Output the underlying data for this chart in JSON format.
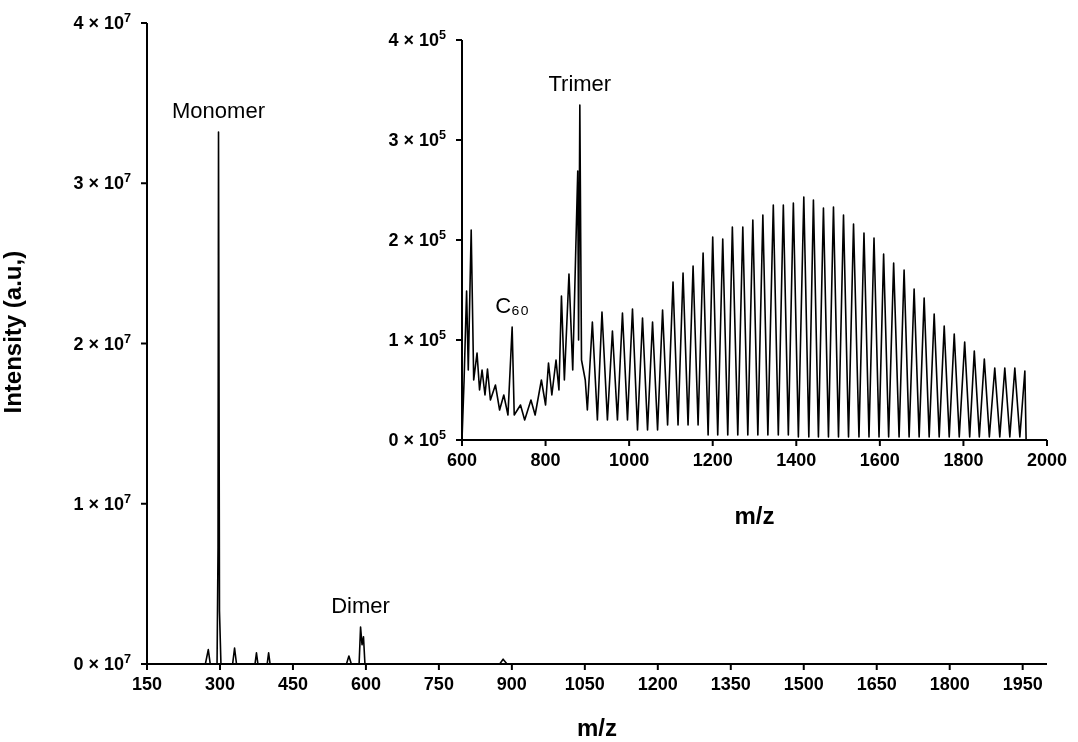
{
  "chart_data": [
    {
      "type": "line",
      "color": "#000000",
      "xlabel": "m/z",
      "ylabel": "Intensity (a.u,)",
      "x": [
        150,
        270,
        276,
        280,
        294,
        296,
        297,
        299,
        302,
        326,
        330,
        334,
        372,
        375,
        378,
        397,
        400,
        403,
        560,
        565,
        570,
        586,
        589,
        592,
        595,
        598,
        875,
        882,
        890,
        1950
      ],
      "values": [
        0,
        0,
        900000,
        0,
        0,
        7250000,
        33200000,
        3300000,
        0,
        0,
        1000000,
        0,
        0,
        700000,
        0,
        0,
        700000,
        0,
        0,
        500000,
        0,
        0,
        2300000,
        1200000,
        1700000,
        0,
        0,
        300000,
        0,
        0
      ],
      "xlim": [
        150,
        2000
      ],
      "xticks": [
        150,
        300,
        450,
        600,
        750,
        900,
        1050,
        1200,
        1350,
        1500,
        1650,
        1800,
        1950
      ],
      "ylim": [
        0,
        40000000
      ],
      "yticks": [
        {
          "value": 0,
          "label": "0 × 10$^{7}$"
        },
        {
          "value": 10000000,
          "label": "1 × 10$^{7}$"
        },
        {
          "value": 20000000,
          "label": "2 × 10$^{7}$"
        },
        {
          "value": 30000000,
          "label": "3 × 10$^{7}$"
        },
        {
          "value": 40000000,
          "label": "4 × 10$^{7}$"
        }
      ],
      "annotations": [
        {
          "text": "Monomer",
          "x": 297,
          "y": 33200000
        },
        {
          "text": "Dimer",
          "x": 589,
          "y": 2300000
        }
      ]
    },
    {
      "type": "line",
      "color": "#000000",
      "xlabel": "m/z",
      "x": [
        600,
        605,
        611,
        615,
        622,
        628,
        636,
        642,
        648,
        655,
        661,
        668,
        680,
        690,
        700,
        710,
        720,
        725,
        740,
        750,
        765,
        775,
        790,
        800,
        807,
        815,
        825,
        832,
        838,
        845,
        856,
        865,
        877,
        879,
        882,
        886,
        895,
        900,
        912,
        924,
        935,
        948,
        960,
        972,
        984,
        996,
        1008,
        1020,
        1032,
        1044,
        1056,
        1068,
        1080,
        1092,
        1105,
        1117,
        1129,
        1141,
        1153,
        1165,
        1177,
        1189,
        1200,
        1212,
        1224,
        1236,
        1247,
        1260,
        1272,
        1284,
        1296,
        1308,
        1320,
        1332,
        1345,
        1357,
        1369,
        1381,
        1393,
        1405,
        1418,
        1430,
        1441,
        1453,
        1465,
        1477,
        1489,
        1501,
        1513,
        1525,
        1537,
        1550,
        1562,
        1574,
        1586,
        1598,
        1609,
        1621,
        1633,
        1646,
        1658,
        1670,
        1682,
        1694,
        1706,
        1718,
        1730,
        1742,
        1754,
        1766,
        1778,
        1790,
        1803,
        1815,
        1826,
        1838,
        1850,
        1862,
        1875,
        1887,
        1899,
        1911,
        1923,
        1935,
        1947,
        1950
      ],
      "values": [
        0,
        60000,
        149000,
        70000,
        210000,
        60000,
        87000,
        50000,
        70000,
        45000,
        71000,
        40000,
        55000,
        30000,
        45000,
        25000,
        113000,
        25000,
        35000,
        20000,
        40000,
        25000,
        60000,
        35000,
        77000,
        45000,
        80000,
        50000,
        144000,
        60000,
        166000,
        70000,
        269000,
        100000,
        335000,
        80000,
        60000,
        30000,
        118000,
        20000,
        128000,
        20000,
        109000,
        20000,
        127000,
        20000,
        131000,
        10000,
        122000,
        10000,
        118000,
        10000,
        130000,
        15000,
        158000,
        15000,
        167000,
        15000,
        174000,
        15000,
        187000,
        5000,
        203000,
        5000,
        201000,
        5000,
        213000,
        5000,
        213000,
        5000,
        220000,
        5000,
        225000,
        5000,
        235000,
        5000,
        235000,
        5000,
        237000,
        3000,
        243000,
        3000,
        240000,
        3000,
        232000,
        3000,
        233000,
        3000,
        225000,
        3000,
        216000,
        3000,
        207000,
        3000,
        202000,
        3000,
        186000,
        3000,
        177000,
        3000,
        170000,
        3000,
        151000,
        3000,
        142000,
        3000,
        126000,
        3000,
        114000,
        3000,
        106000,
        3000,
        98000,
        3000,
        89000,
        3000,
        81000,
        3000,
        72000,
        3000,
        72000,
        3000,
        72000,
        3000,
        69000,
        0
      ],
      "xlim": [
        600,
        2000
      ],
      "xticks": [
        600,
        800,
        1000,
        1200,
        1400,
        1600,
        1800,
        2000
      ],
      "ylim": [
        0,
        400000
      ],
      "yticks": [
        {
          "value": 0,
          "label": "0 × 10$^{5}$"
        },
        {
          "value": 100000,
          "label": "1 × 10$^{5}$"
        },
        {
          "value": 200000,
          "label": "2 × 10$^{5}$"
        },
        {
          "value": 300000,
          "label": "3 × 10$^{5}$"
        },
        {
          "value": 400000,
          "label": "4 × 10$^{5}$"
        }
      ],
      "annotations": [
        {
          "text": "Trimer",
          "x": 882,
          "y": 335000
        },
        {
          "text": "C₆₀",
          "x": 720,
          "y": 113000
        }
      ]
    }
  ]
}
